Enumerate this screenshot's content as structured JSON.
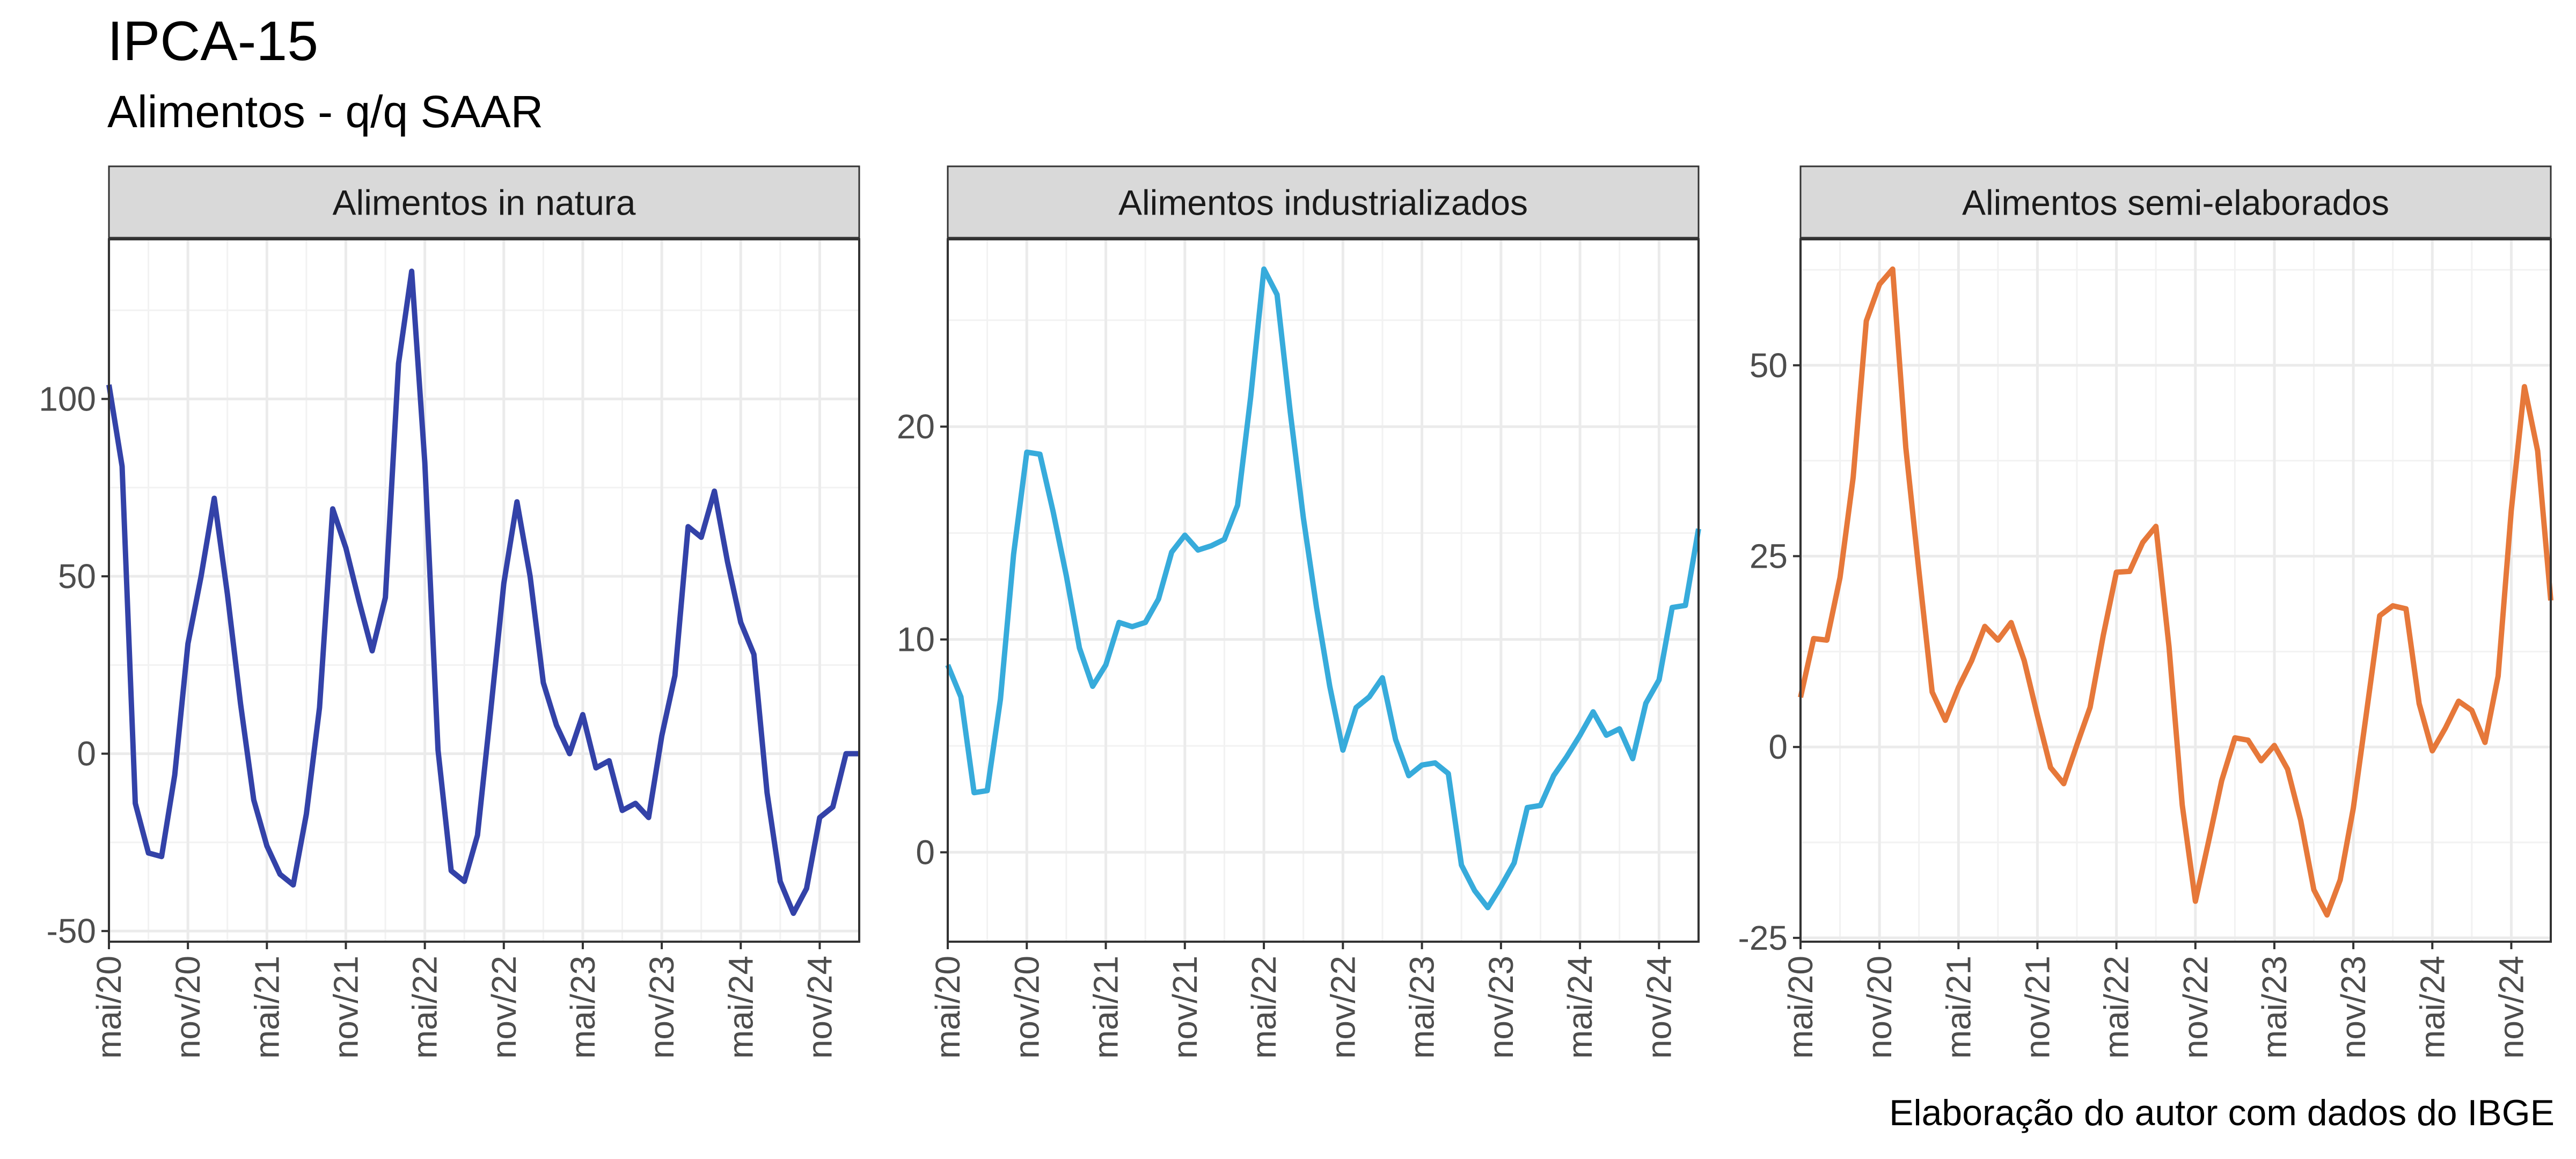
{
  "title": "IPCA-15",
  "subtitle": "Alimentos - q/q SAAR",
  "caption": "Elaboração do autor com dados do IBGE",
  "chart_data": [
    {
      "type": "line",
      "panel": "Alimentos in natura",
      "color": "#3342A8",
      "x_start": "2020-05",
      "x_ticks": [
        "mai/20",
        "nov/20",
        "mai/21",
        "nov/21",
        "mai/22",
        "nov/22",
        "mai/23",
        "nov/23",
        "mai/24",
        "nov/24"
      ],
      "y_ticks": [
        -50,
        0,
        50,
        100
      ],
      "ylim": [
        -53,
        145
      ],
      "values": [
        104,
        81,
        -14,
        -28,
        -29,
        -6,
        31,
        50,
        72,
        45,
        14,
        -13,
        -26,
        -34,
        -37,
        -17,
        13,
        69,
        58,
        43,
        29,
        44,
        110,
        136,
        82,
        1,
        -33,
        -36,
        -23,
        12,
        48,
        71,
        50,
        20,
        8,
        0,
        11,
        -4,
        -2,
        -16,
        -14,
        -18,
        5,
        22,
        64,
        61,
        74,
        54,
        37,
        28,
        -11,
        -36,
        -45,
        -38,
        -18,
        -15,
        0,
        0
      ]
    },
    {
      "type": "line",
      "panel": "Alimentos industrializados",
      "color": "#37ABDB",
      "x_start": "2020-05",
      "x_ticks": [
        "mai/20",
        "nov/20",
        "mai/21",
        "nov/21",
        "mai/22",
        "nov/22",
        "mai/23",
        "nov/23",
        "mai/24",
        "nov/24"
      ],
      "y_ticks": [
        0,
        10,
        20
      ],
      "ylim": [
        -4.2,
        28.8
      ],
      "values": [
        8.8,
        7.3,
        2.8,
        2.9,
        7.2,
        14.0,
        18.8,
        18.7,
        16.0,
        13.0,
        9.6,
        7.8,
        8.8,
        10.8,
        10.6,
        10.8,
        11.9,
        14.1,
        14.9,
        14.2,
        14.4,
        14.7,
        16.3,
        21.4,
        27.4,
        26.2,
        20.7,
        15.7,
        11.5,
        7.8,
        4.8,
        6.8,
        7.3,
        8.2,
        5.3,
        3.6,
        4.1,
        4.2,
        3.7,
        -0.6,
        -1.8,
        -2.6,
        -1.6,
        -0.5,
        2.1,
        2.2,
        3.6,
        4.5,
        5.5,
        6.6,
        5.5,
        5.8,
        4.4,
        7.0,
        8.1,
        11.5,
        11.6,
        15.2
      ]
    },
    {
      "type": "line",
      "panel": "Alimentos semi-elaborados",
      "color": "#E6783A",
      "x_start": "2020-05",
      "x_ticks": [
        "mai/20",
        "nov/20",
        "mai/21",
        "nov/21",
        "mai/22",
        "nov/22",
        "mai/23",
        "nov/23",
        "mai/24",
        "nov/24"
      ],
      "y_ticks": [
        -25,
        0,
        25,
        50
      ],
      "ylim": [
        -25.5,
        66.5
      ],
      "values": [
        6.5,
        14.2,
        14.0,
        22.2,
        35.3,
        55.8,
        60.6,
        62.6,
        39.2,
        23.0,
        7.2,
        3.5,
        7.8,
        11.3,
        15.8,
        14.0,
        16.3,
        11.3,
        4.1,
        -2.7,
        -4.8,
        0.3,
        5.2,
        14.6,
        22.9,
        23.0,
        26.8,
        28.9,
        13.1,
        -7.6,
        -20.2,
        -12.4,
        -4.4,
        1.2,
        0.9,
        -1.8,
        0.2,
        -2.9,
        -9.6,
        -18.7,
        -22.0,
        -17.4,
        -8.0,
        4.5,
        17.2,
        18.5,
        18.1,
        5.7,
        -0.5,
        2.5,
        6.0,
        4.8,
        0.6,
        9.3,
        31.0,
        47.2,
        38.8,
        19.2
      ]
    }
  ]
}
